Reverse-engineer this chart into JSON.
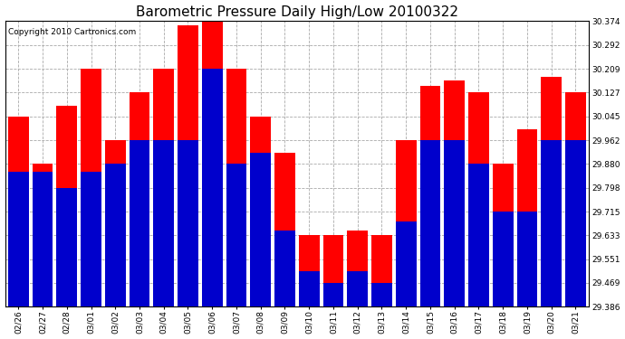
{
  "title": "Barometric Pressure Daily High/Low 20100322",
  "copyright": "Copyright 2010 Cartronics.com",
  "dates": [
    "02/26",
    "02/27",
    "02/28",
    "03/01",
    "03/02",
    "03/03",
    "03/04",
    "03/05",
    "03/06",
    "03/07",
    "03/08",
    "03/09",
    "03/10",
    "03/11",
    "03/12",
    "03/13",
    "03/14",
    "03/15",
    "03/16",
    "03/17",
    "03/18",
    "03/19",
    "03/20",
    "03/21"
  ],
  "highs": [
    30.045,
    29.88,
    30.082,
    30.209,
    29.962,
    30.127,
    30.209,
    30.36,
    30.374,
    30.209,
    30.045,
    29.92,
    29.633,
    29.633,
    29.65,
    29.633,
    29.962,
    30.15,
    30.17,
    30.127,
    29.88,
    30.0,
    30.18,
    30.127
  ],
  "lows": [
    29.853,
    29.853,
    29.798,
    29.853,
    29.88,
    29.962,
    29.962,
    29.962,
    30.209,
    29.88,
    29.92,
    29.65,
    29.51,
    29.469,
    29.51,
    29.469,
    29.68,
    29.962,
    29.962,
    29.88,
    29.715,
    29.715,
    29.962,
    29.962
  ],
  "high_color": "#ff0000",
  "low_color": "#0000cc",
  "background_color": "#ffffff",
  "grid_color": "#aaaaaa",
  "ymin": 29.386,
  "ymax": 30.374,
  "yticks": [
    29.386,
    29.469,
    29.551,
    29.633,
    29.715,
    29.798,
    29.88,
    29.962,
    30.045,
    30.127,
    30.209,
    30.292,
    30.374
  ],
  "title_fontsize": 11,
  "tick_fontsize": 6.5,
  "copyright_fontsize": 6.5,
  "bar_width": 0.85
}
